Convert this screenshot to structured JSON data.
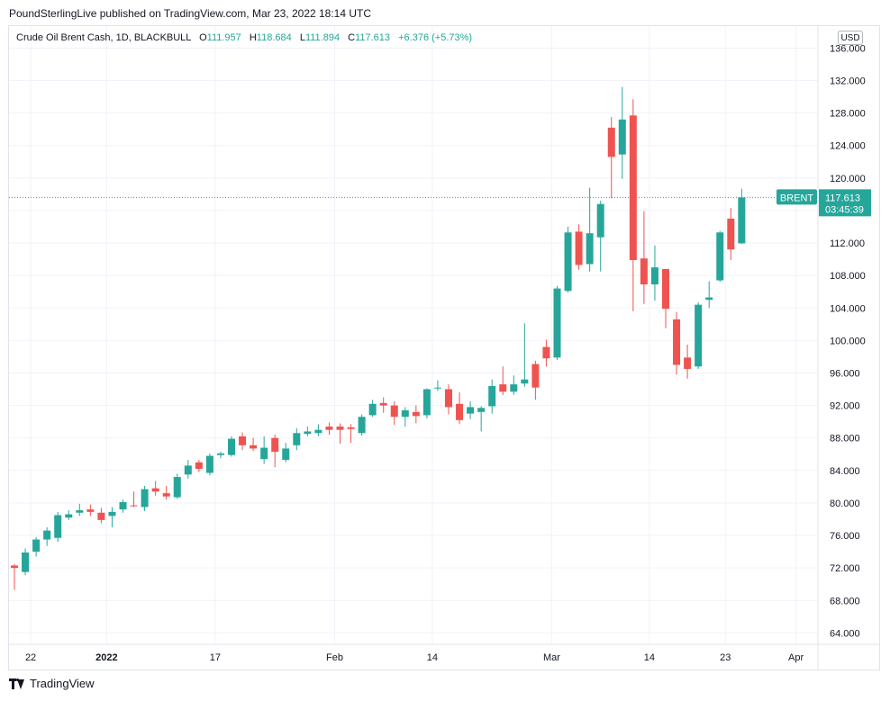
{
  "header": {
    "publish_line": "PoundSterlingLive published on TradingView.com, Mar 23, 2022 18:14 UTC"
  },
  "legend": {
    "symbol": "Crude Oil Brent Cash, 1D, BLACKBULL",
    "open_key": "O",
    "open": "111.957",
    "high_key": "H",
    "high": "118.684",
    "low_key": "L",
    "low": "111.894",
    "close_key": "C",
    "close": "117.613",
    "change": "+6.376 (+5.73%)"
  },
  "price_axis": {
    "currency": "USD"
  },
  "badge": {
    "label": "BRENT",
    "price": "117.613",
    "countdown": "03:45:39"
  },
  "footer": {
    "brand": "TradingView"
  },
  "colors": {
    "up": "#26a69a",
    "down": "#ef5350",
    "grid": "#f0f3fa",
    "axis_text": "#131722"
  },
  "chart_data": {
    "type": "candlestick",
    "title": "Crude Oil Brent Cash, 1D, BLACKBULL",
    "y_ticks": [
      "64.000",
      "68.000",
      "72.000",
      "76.000",
      "80.000",
      "84.000",
      "88.000",
      "92.000",
      "96.000",
      "100.000",
      "104.000",
      "108.000",
      "112.000",
      "116.000",
      "120.000",
      "124.000",
      "128.000",
      "132.000",
      "136.000"
    ],
    "x_ticks": [
      {
        "label": "22",
        "index": 1.5,
        "bold": false
      },
      {
        "label": "2022",
        "index": 8.5,
        "bold": true
      },
      {
        "label": "17",
        "index": 18.5,
        "bold": false
      },
      {
        "label": "Feb",
        "index": 29.5,
        "bold": false
      },
      {
        "label": "14",
        "index": 38.5,
        "bold": false
      },
      {
        "label": "Mar",
        "index": 49.5,
        "bold": false
      },
      {
        "label": "14",
        "index": 58.5,
        "bold": false
      },
      {
        "label": "23",
        "index": 65.5,
        "bold": false
      },
      {
        "label": "Apr",
        "index": 72,
        "bold": false
      }
    ],
    "ylim": [
      62.6,
      138.7
    ],
    "last_price": 117.613,
    "grid": true,
    "candles": [
      {
        "o": 72.3,
        "h": 72.5,
        "l": 69.3,
        "c": 72.0
      },
      {
        "o": 71.5,
        "h": 74.4,
        "l": 71.1,
        "c": 73.9
      },
      {
        "o": 74.0,
        "h": 75.8,
        "l": 73.4,
        "c": 75.5
      },
      {
        "o": 75.5,
        "h": 77.0,
        "l": 74.7,
        "c": 76.6
      },
      {
        "o": 75.7,
        "h": 78.9,
        "l": 75.2,
        "c": 78.5
      },
      {
        "o": 78.2,
        "h": 79.1,
        "l": 77.9,
        "c": 78.6
      },
      {
        "o": 78.8,
        "h": 79.9,
        "l": 78.4,
        "c": 79.1
      },
      {
        "o": 79.2,
        "h": 79.8,
        "l": 78.4,
        "c": 78.9
      },
      {
        "o": 78.8,
        "h": 79.4,
        "l": 77.5,
        "c": 77.9
      },
      {
        "o": 78.4,
        "h": 79.5,
        "l": 77.0,
        "c": 78.9
      },
      {
        "o": 79.2,
        "h": 80.4,
        "l": 78.8,
        "c": 80.1
      },
      {
        "o": 79.7,
        "h": 81.4,
        "l": 79.5,
        "c": 79.6
      },
      {
        "o": 79.5,
        "h": 82.1,
        "l": 79.0,
        "c": 81.7
      },
      {
        "o": 81.8,
        "h": 82.7,
        "l": 80.9,
        "c": 81.4
      },
      {
        "o": 81.2,
        "h": 82.1,
        "l": 80.4,
        "c": 80.8
      },
      {
        "o": 80.7,
        "h": 83.6,
        "l": 80.5,
        "c": 83.2
      },
      {
        "o": 83.5,
        "h": 85.3,
        "l": 83.0,
        "c": 84.6
      },
      {
        "o": 85.0,
        "h": 85.3,
        "l": 83.8,
        "c": 84.2
      },
      {
        "o": 83.7,
        "h": 86.1,
        "l": 83.4,
        "c": 85.8
      },
      {
        "o": 85.9,
        "h": 86.3,
        "l": 85.5,
        "c": 86.1
      },
      {
        "o": 85.9,
        "h": 88.2,
        "l": 85.7,
        "c": 87.9
      },
      {
        "o": 88.2,
        "h": 88.7,
        "l": 86.5,
        "c": 87.1
      },
      {
        "o": 87.1,
        "h": 88.0,
        "l": 86.4,
        "c": 86.7
      },
      {
        "o": 85.4,
        "h": 88.2,
        "l": 84.8,
        "c": 86.8
      },
      {
        "o": 88.0,
        "h": 88.4,
        "l": 84.4,
        "c": 86.3
      },
      {
        "o": 85.3,
        "h": 87.4,
        "l": 85.0,
        "c": 86.7
      },
      {
        "o": 87.1,
        "h": 89.2,
        "l": 86.5,
        "c": 88.6
      },
      {
        "o": 88.5,
        "h": 89.4,
        "l": 88.2,
        "c": 88.8
      },
      {
        "o": 88.6,
        "h": 89.7,
        "l": 88.2,
        "c": 89.0
      },
      {
        "o": 89.4,
        "h": 89.9,
        "l": 88.4,
        "c": 89.0
      },
      {
        "o": 89.4,
        "h": 89.8,
        "l": 87.3,
        "c": 89.0
      },
      {
        "o": 89.3,
        "h": 89.7,
        "l": 87.4,
        "c": 89.1
      },
      {
        "o": 88.6,
        "h": 90.9,
        "l": 88.3,
        "c": 90.6
      },
      {
        "o": 90.8,
        "h": 92.7,
        "l": 90.6,
        "c": 92.2
      },
      {
        "o": 92.3,
        "h": 93.0,
        "l": 91.1,
        "c": 92.0
      },
      {
        "o": 92.0,
        "h": 92.5,
        "l": 89.6,
        "c": 90.6
      },
      {
        "o": 90.6,
        "h": 91.8,
        "l": 89.4,
        "c": 91.4
      },
      {
        "o": 91.2,
        "h": 92.0,
        "l": 89.8,
        "c": 90.7
      },
      {
        "o": 90.8,
        "h": 94.1,
        "l": 90.4,
        "c": 94.0
      },
      {
        "o": 94.1,
        "h": 95.1,
        "l": 93.8,
        "c": 94.2
      },
      {
        "o": 94.0,
        "h": 94.6,
        "l": 90.9,
        "c": 91.8
      },
      {
        "o": 92.2,
        "h": 93.6,
        "l": 89.7,
        "c": 90.2
      },
      {
        "o": 91.0,
        "h": 92.5,
        "l": 90.3,
        "c": 91.8
      },
      {
        "o": 91.2,
        "h": 91.9,
        "l": 88.8,
        "c": 91.7
      },
      {
        "o": 91.9,
        "h": 95.2,
        "l": 91.0,
        "c": 94.4
      },
      {
        "o": 94.6,
        "h": 96.8,
        "l": 93.3,
        "c": 93.7
      },
      {
        "o": 93.7,
        "h": 95.7,
        "l": 93.3,
        "c": 94.6
      },
      {
        "o": 94.7,
        "h": 102.1,
        "l": 94.3,
        "c": 95.2
      },
      {
        "o": 97.1,
        "h": 97.5,
        "l": 92.7,
        "c": 94.2
      },
      {
        "o": 99.2,
        "h": 100.1,
        "l": 96.8,
        "c": 97.8
      },
      {
        "o": 97.9,
        "h": 106.7,
        "l": 97.6,
        "c": 106.4
      },
      {
        "o": 106.1,
        "h": 114.0,
        "l": 105.9,
        "c": 113.3
      },
      {
        "o": 113.4,
        "h": 114.3,
        "l": 108.7,
        "c": 109.3
      },
      {
        "o": 109.4,
        "h": 118.8,
        "l": 108.5,
        "c": 113.2
      },
      {
        "o": 112.7,
        "h": 117.2,
        "l": 108.5,
        "c": 116.8
      },
      {
        "o": 126.2,
        "h": 127.5,
        "l": 117.5,
        "c": 122.6
      },
      {
        "o": 122.9,
        "h": 131.2,
        "l": 119.9,
        "c": 127.2
      },
      {
        "o": 127.7,
        "h": 129.7,
        "l": 103.6,
        "c": 109.9
      },
      {
        "o": 110.1,
        "h": 115.9,
        "l": 104.5,
        "c": 106.9
      },
      {
        "o": 106.9,
        "h": 111.7,
        "l": 104.9,
        "c": 109.0
      },
      {
        "o": 108.8,
        "h": 108.8,
        "l": 101.5,
        "c": 103.9
      },
      {
        "o": 102.6,
        "h": 103.5,
        "l": 95.8,
        "c": 97.0
      },
      {
        "o": 97.9,
        "h": 99.5,
        "l": 95.3,
        "c": 96.5
      },
      {
        "o": 96.8,
        "h": 104.7,
        "l": 96.5,
        "c": 104.4
      },
      {
        "o": 105.0,
        "h": 107.3,
        "l": 104.0,
        "c": 105.3
      },
      {
        "o": 107.4,
        "h": 113.5,
        "l": 107.2,
        "c": 113.3
      },
      {
        "o": 115.0,
        "h": 116.3,
        "l": 109.9,
        "c": 111.2
      },
      {
        "o": 111.957,
        "h": 118.684,
        "l": 111.894,
        "c": 117.613
      }
    ]
  }
}
